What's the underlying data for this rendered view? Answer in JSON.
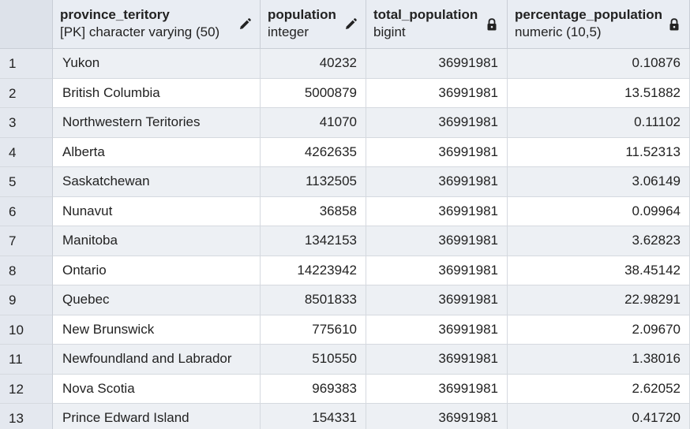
{
  "columns": [
    {
      "name": "province_teritory",
      "type": "[PK] character varying (50)",
      "icon": "pencil-icon"
    },
    {
      "name": "population",
      "type": "integer",
      "icon": "pencil-icon"
    },
    {
      "name": "total_population",
      "type": "bigint",
      "icon": "lock-icon"
    },
    {
      "name": "percentage_population",
      "type": "numeric (10,5)",
      "icon": "lock-icon"
    }
  ],
  "rows": [
    {
      "n": "1",
      "province": "Yukon",
      "population": "40232",
      "total": "36991981",
      "pct": "0.10876"
    },
    {
      "n": "2",
      "province": "British Columbia",
      "population": "5000879",
      "total": "36991981",
      "pct": "13.51882"
    },
    {
      "n": "3",
      "province": "Northwestern Teritories",
      "population": "41070",
      "total": "36991981",
      "pct": "0.11102"
    },
    {
      "n": "4",
      "province": "Alberta",
      "population": "4262635",
      "total": "36991981",
      "pct": "11.52313"
    },
    {
      "n": "5",
      "province": "Saskatchewan",
      "population": "1132505",
      "total": "36991981",
      "pct": "3.06149"
    },
    {
      "n": "6",
      "province": "Nunavut",
      "population": "36858",
      "total": "36991981",
      "pct": "0.09964"
    },
    {
      "n": "7",
      "province": "Manitoba",
      "population": "1342153",
      "total": "36991981",
      "pct": "3.62823"
    },
    {
      "n": "8",
      "province": "Ontario",
      "population": "14223942",
      "total": "36991981",
      "pct": "38.45142"
    },
    {
      "n": "9",
      "province": "Quebec",
      "population": "8501833",
      "total": "36991981",
      "pct": "22.98291"
    },
    {
      "n": "10",
      "province": "New Brunswick",
      "population": "775610",
      "total": "36991981",
      "pct": "2.09670"
    },
    {
      "n": "11",
      "province": "Newfoundland and Labrador",
      "population": "510550",
      "total": "36991981",
      "pct": "1.38016"
    },
    {
      "n": "12",
      "province": "Nova Scotia",
      "population": "969383",
      "total": "36991981",
      "pct": "2.62052"
    },
    {
      "n": "13",
      "province": "Prince Edward Island",
      "population": "154331",
      "total": "36991981",
      "pct": "0.41720"
    }
  ]
}
